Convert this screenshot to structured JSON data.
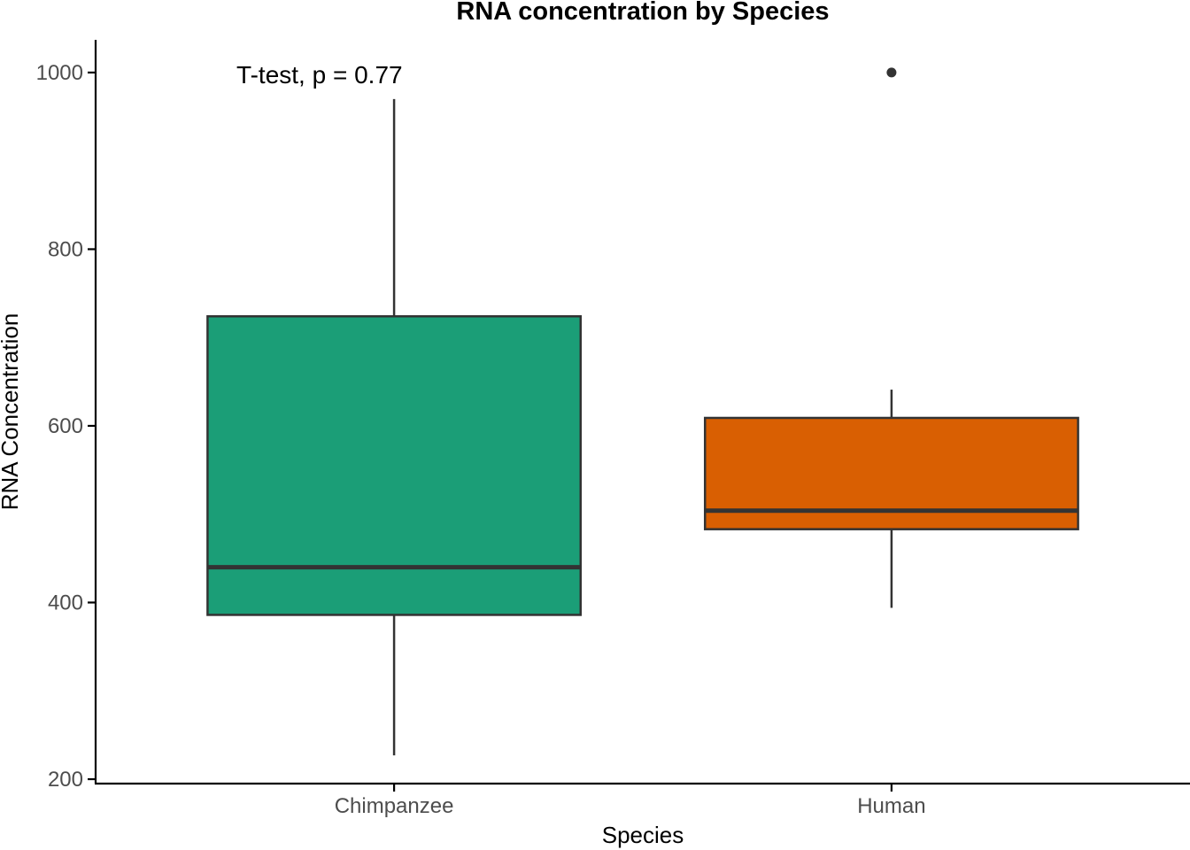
{
  "chart_data": {
    "type": "box",
    "title": "RNA concentration by Species",
    "xlabel": "Species",
    "ylabel": "RNA Concentration",
    "ylim": [
      195,
      1037
    ],
    "y_ticks": [
      200,
      400,
      600,
      800,
      1000
    ],
    "y_tick_labels": [
      "200",
      "400",
      "600",
      "800",
      "1000"
    ],
    "grid": false,
    "legend": "none",
    "categories": [
      "Chimpanzee",
      "Human"
    ],
    "boxes": [
      {
        "category": "Chimpanzee",
        "whisker_low": 227,
        "q1": 386,
        "median": 440,
        "q3": 724,
        "whisker_high": 970,
        "outliers": [],
        "color": "#1b9e77"
      },
      {
        "category": "Human",
        "whisker_low": 394,
        "q1": 483,
        "median": 504,
        "q3": 609,
        "whisker_high": 641,
        "outliers": [
          1000
        ],
        "color": "#d95f02"
      }
    ],
    "annotation": {
      "text": "T-test, p = 0.77",
      "y": 998,
      "category_position": 0.85
    }
  }
}
